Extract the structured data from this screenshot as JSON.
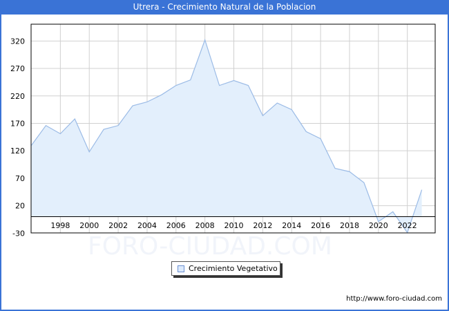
{
  "header": {
    "title": "Utrera - Crecimiento Natural de la Poblacion"
  },
  "legend": {
    "label": "Crecimiento Vegetativo",
    "swatch_icon": "square-swatch-icon"
  },
  "footer": {
    "url": "http://www.foro-ciudad.com"
  },
  "watermark": "FORO-CIUDAD.COM",
  "colors": {
    "title_bar": "#3a73d6",
    "area_fill": "#e3effc",
    "line": "#9bbbe6",
    "grid": "#d0d0d0"
  },
  "chart_data": {
    "type": "area",
    "title": "Utrera - Crecimiento Natural de la Poblacion",
    "xlabel": "",
    "ylabel": "",
    "x": [
      1996,
      1997,
      1998,
      1999,
      2000,
      2001,
      2002,
      2003,
      2004,
      2005,
      2006,
      2007,
      2008,
      2009,
      2010,
      2011,
      2012,
      2013,
      2014,
      2015,
      2016,
      2017,
      2018,
      2019,
      2020,
      2021,
      2022,
      2023
    ],
    "series": [
      {
        "name": "Crecimiento Vegetativo",
        "values": [
          130,
          166,
          151,
          178,
          118,
          159,
          166,
          202,
          209,
          222,
          239,
          249,
          322,
          239,
          248,
          239,
          184,
          207,
          195,
          155,
          142,
          88,
          82,
          62,
          -9,
          9,
          -29,
          49
        ]
      }
    ],
    "x_tick_labels": [
      "1998",
      "2000",
      "2002",
      "2004",
      "2006",
      "2008",
      "2010",
      "2012",
      "2014",
      "2016",
      "2018",
      "2020",
      "2022"
    ],
    "y_tick_labels": [
      "320",
      "270",
      "220",
      "170",
      "120",
      "70",
      "20",
      "-30"
    ],
    "ylim": [
      -30,
      350
    ],
    "xlim": [
      1996,
      2024
    ],
    "grid": true,
    "legend_position": "bottom"
  }
}
